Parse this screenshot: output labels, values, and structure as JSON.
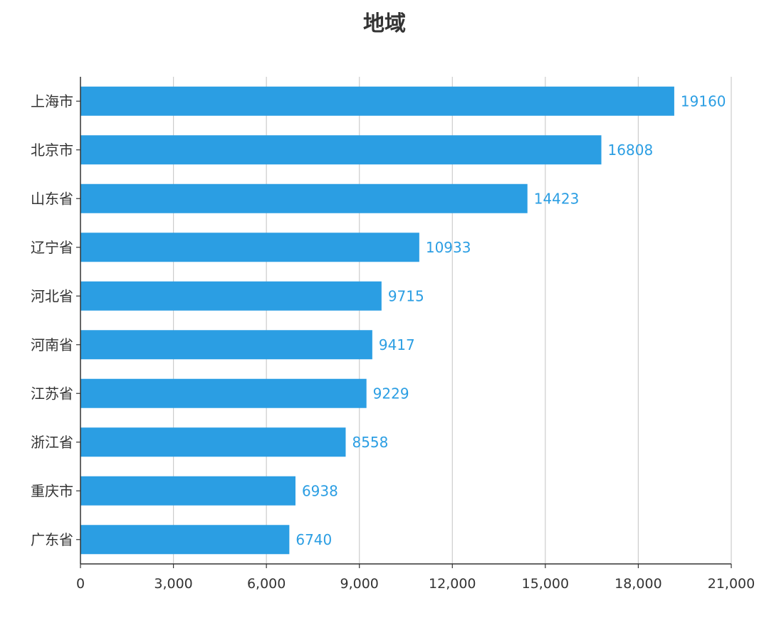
{
  "title": "地域",
  "colors": {
    "bar": "#2b9ee3",
    "value_label": "#2b9ee3",
    "grid": "#cccccc",
    "axis": "#333333",
    "text": "#333333"
  },
  "chart_data": {
    "type": "bar",
    "orientation": "horizontal",
    "title": "地域",
    "xlabel": "",
    "ylabel": "",
    "xlim": [
      0,
      21000
    ],
    "x_ticks": [
      0,
      3000,
      6000,
      9000,
      12000,
      15000,
      18000,
      21000
    ],
    "x_tick_labels": [
      "0",
      "3,000",
      "6,000",
      "9,000",
      "12,000",
      "15,000",
      "18,000",
      "21,000"
    ],
    "grid": "vertical",
    "legend": "none",
    "categories": [
      "上海市",
      "北京市",
      "山东省",
      "辽宁省",
      "河北省",
      "河南省",
      "江苏省",
      "浙江省",
      "重庆市",
      "广东省"
    ],
    "values": [
      19160,
      16808,
      14423,
      10933,
      9715,
      9417,
      9229,
      8558,
      6938,
      6740
    ],
    "value_labels": [
      "19160",
      "16808",
      "14423",
      "10933",
      "9715",
      "9417",
      "9229",
      "8558",
      "6938",
      "6740"
    ]
  }
}
